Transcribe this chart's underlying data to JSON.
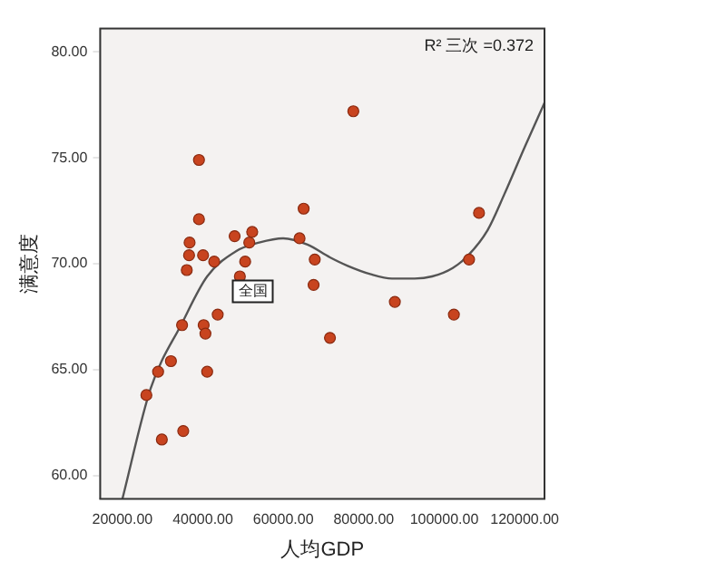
{
  "chart_data": {
    "type": "scatter",
    "xlabel": "人均GDP",
    "ylabel": "满意度",
    "annotations": [
      "R² 三次 =0.372",
      {
        "text": "全国",
        "x": 52400,
        "y": 68.7
      }
    ],
    "series": [
      {
        "type": "scatter",
        "color": "#c8441f",
        "marker": "circle",
        "x": [
          25960,
          29800,
          28870,
          32060,
          35120,
          34830,
          36000,
          36570,
          36700,
          39030,
          39030,
          40050,
          40200,
          40640,
          41070,
          42820,
          43690,
          47900,
          49200,
          50520,
          51540,
          52270,
          64040,
          65060,
          67820,
          67530,
          71600,
          77410,
          87730,
          102410,
          106190,
          108660
        ],
        "values": [
          63.8,
          61.7,
          64.9,
          65.4,
          62.1,
          67.1,
          69.7,
          70.4,
          71.0,
          74.9,
          72.1,
          70.4,
          67.1,
          66.7,
          64.9,
          70.1,
          67.6,
          71.3,
          69.4,
          70.1,
          71.0,
          71.5,
          71.2,
          72.6,
          70.2,
          69.0,
          66.5,
          77.2,
          68.2,
          67.6,
          70.2,
          72.4
        ]
      },
      {
        "type": "line",
        "color": "#555555",
        "marker": "none",
        "x": [
          20000,
          27000,
          34830,
          41070,
          48340,
          54000,
          59970,
          66000,
          71600,
          76000,
          81770,
          87000,
          92670,
          97000,
          102120,
          106000,
          110840,
          115000,
          120000,
          124940
        ],
        "values": [
          58.9,
          64.1,
          67.2,
          69.4,
          70.6,
          71.0,
          71.2,
          70.9,
          70.3,
          69.9,
          69.5,
          69.3,
          69.3,
          69.4,
          69.8,
          70.4,
          71.6,
          73.3,
          75.5,
          77.6
        ]
      }
    ],
    "xlim": [
      14480,
      124940
    ],
    "ylim": [
      58.9,
      81.1
    ],
    "xticks": [
      {
        "value": 20000,
        "label": "20000.00"
      },
      {
        "value": 40000,
        "label": "40000.00"
      },
      {
        "value": 60000,
        "label": "60000.00"
      },
      {
        "value": 80000,
        "label": "80000.00"
      },
      {
        "value": 100000,
        "label": "100000.00"
      },
      {
        "value": 120000,
        "label": "120000.00"
      }
    ],
    "yticks": [
      {
        "value": 60,
        "label": "60.00"
      },
      {
        "value": 65,
        "label": "65.00"
      },
      {
        "value": 70,
        "label": "70.00"
      },
      {
        "value": 75,
        "label": "75.00"
      },
      {
        "value": 80,
        "label": "80.00"
      }
    ],
    "grid": false,
    "legend": false
  }
}
